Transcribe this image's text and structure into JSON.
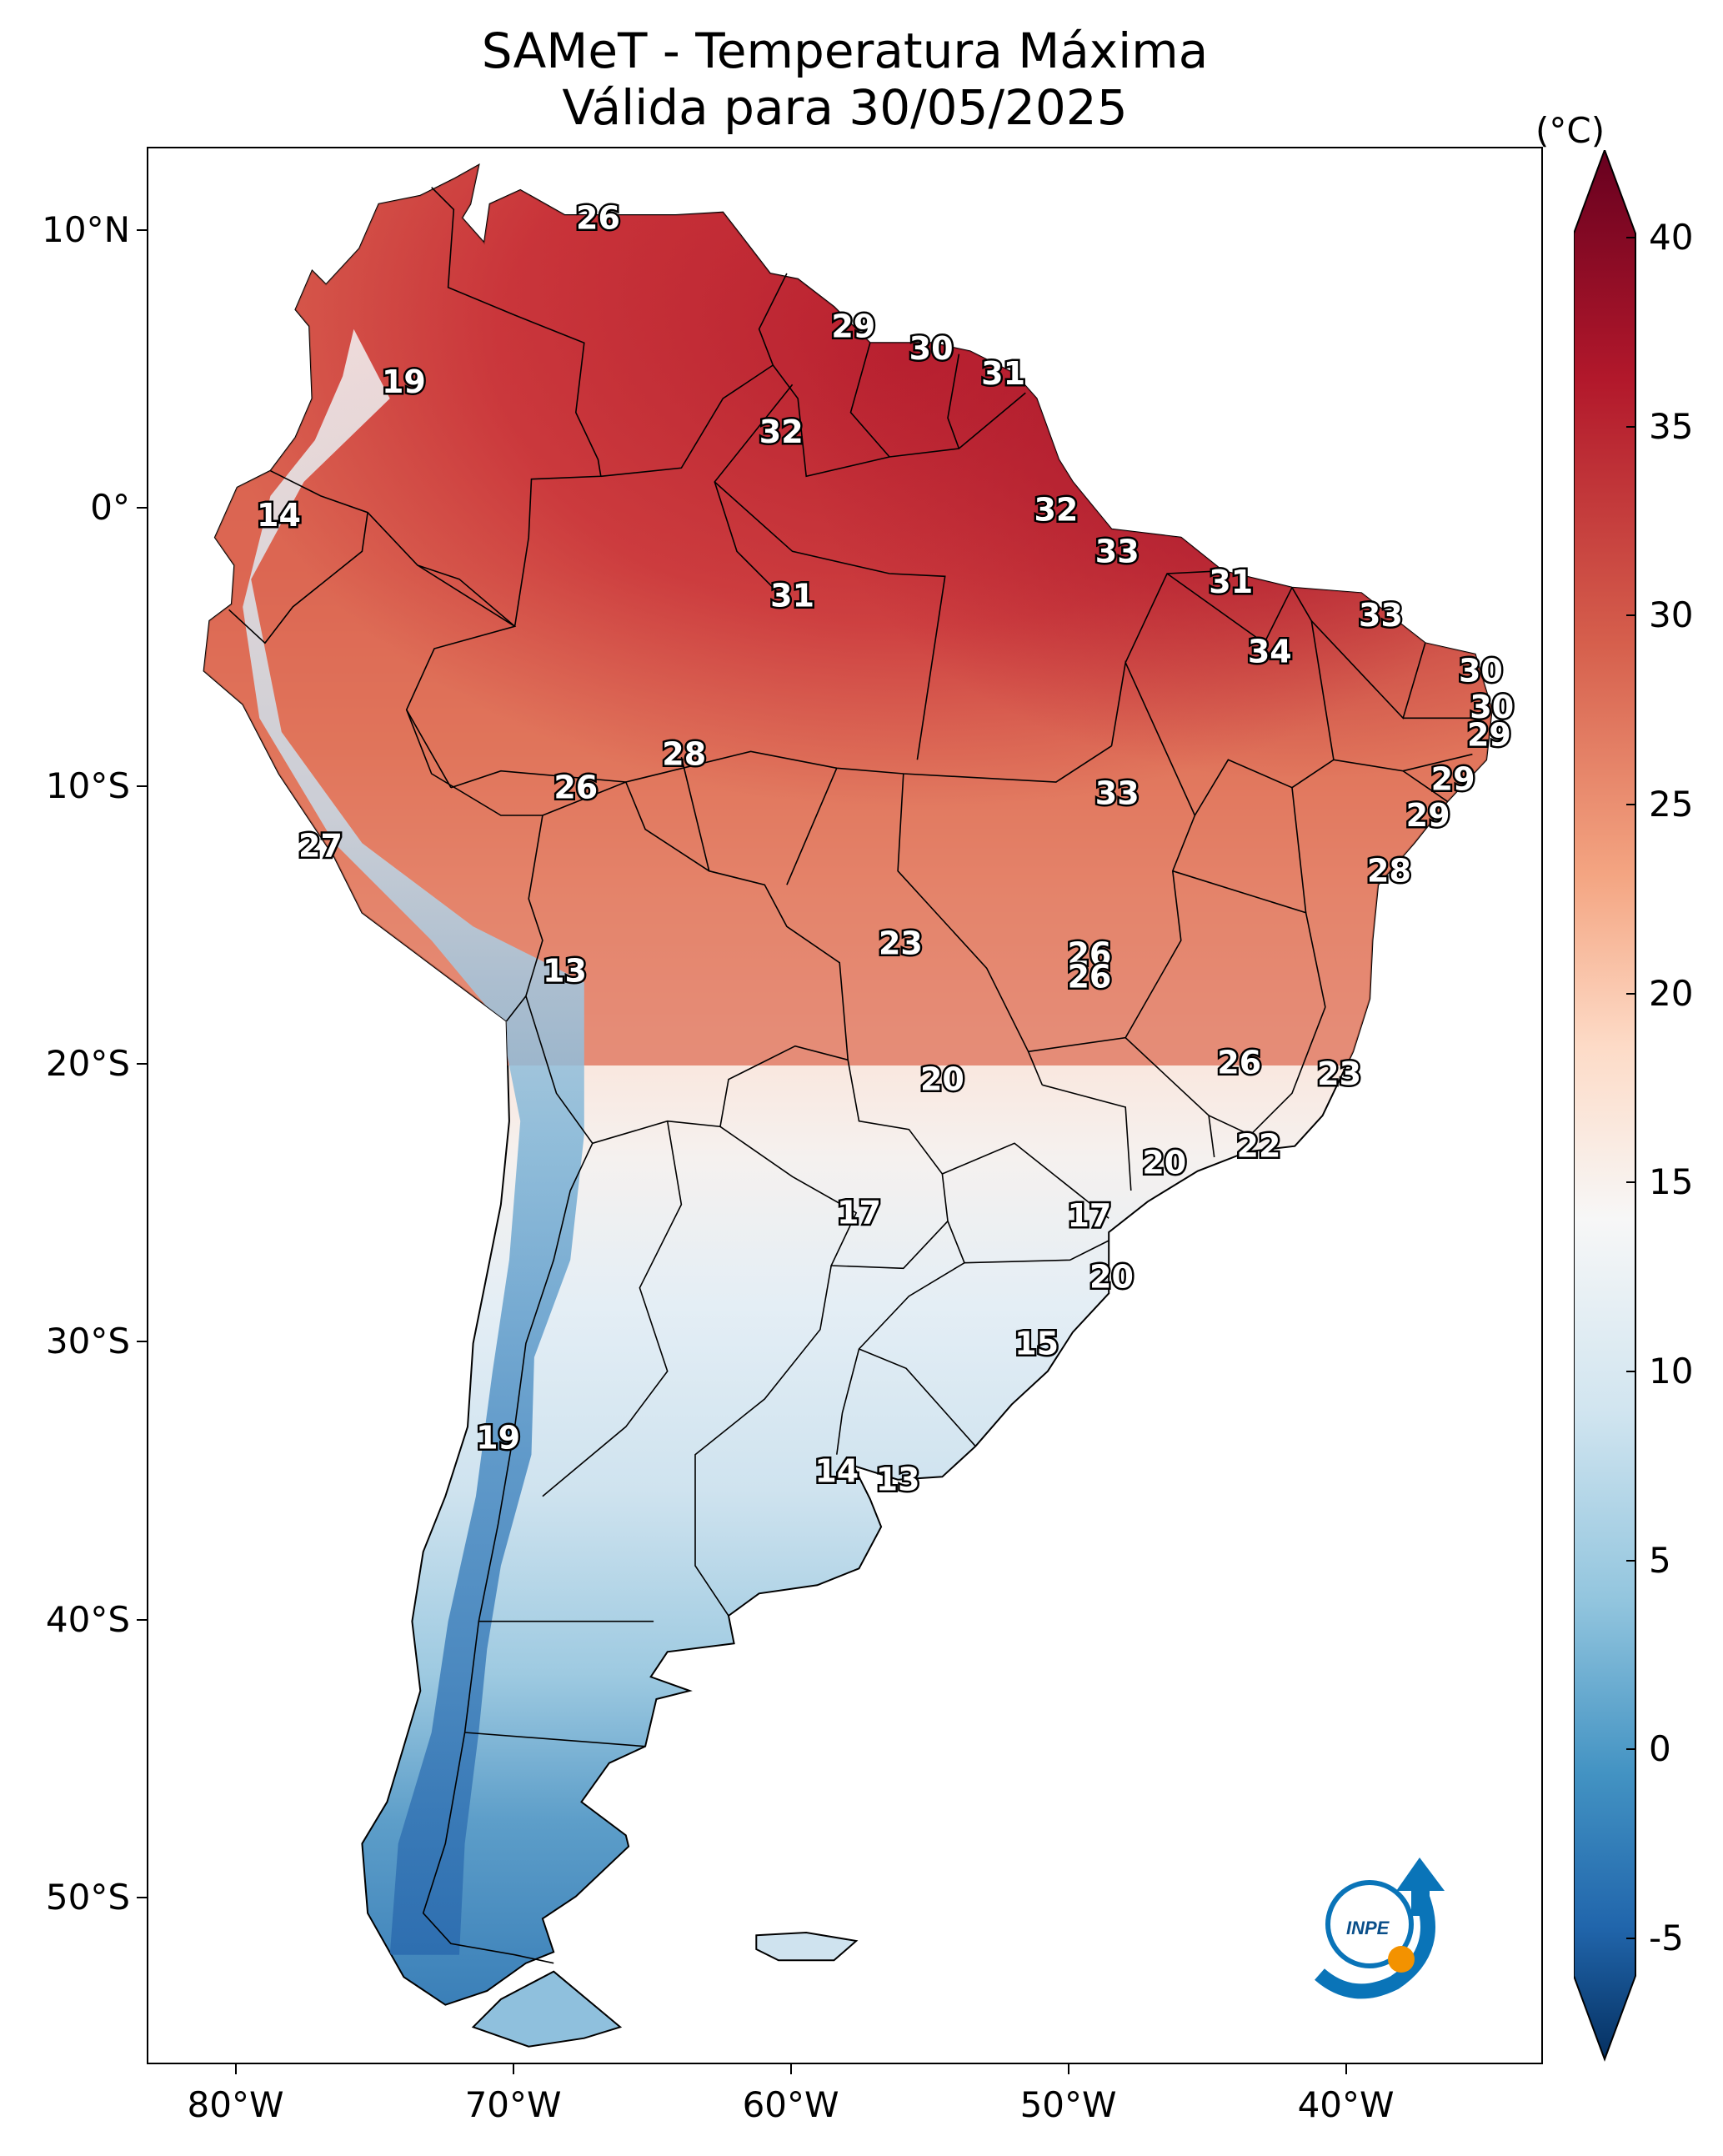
{
  "title": {
    "line1": "SAMeT - Temperatura Máxima",
    "line2": "Válida para 30/05/2025"
  },
  "axes": {
    "lat_labels": [
      "10°N",
      "0°",
      "10°S",
      "20°S",
      "30°S",
      "40°S",
      "50°S"
    ],
    "lon_labels": [
      "80°W",
      "70°W",
      "60°W",
      "50°W",
      "40°W"
    ],
    "lat_range": [
      -56,
      13
    ],
    "lon_range": [
      -83,
      -33
    ]
  },
  "colorbar": {
    "unit": "(°C)",
    "ticks": [
      "40",
      "35",
      "30",
      "25",
      "20",
      "15",
      "10",
      "5",
      "0",
      "-5"
    ],
    "range": [
      -7,
      42
    ],
    "colors_high_to_low": [
      "#67001f",
      "#b2182b",
      "#d6604d",
      "#f4a582",
      "#fddbc7",
      "#f7f7f7",
      "#d1e5f0",
      "#92c5de",
      "#4393c3",
      "#2166ac",
      "#053061"
    ]
  },
  "logo": {
    "text": "INPE",
    "color": "#0a74b8",
    "dot_color": "#f39200"
  },
  "station_labels": [
    {
      "value": "26",
      "lon": -67.0,
      "lat": 10.5
    },
    {
      "value": "29",
      "lon": -57.8,
      "lat": 6.6
    },
    {
      "value": "30",
      "lon": -55.0,
      "lat": 5.8
    },
    {
      "value": "31",
      "lon": -52.4,
      "lat": 4.9
    },
    {
      "value": "19",
      "lon": -74.0,
      "lat": 4.6
    },
    {
      "value": "32",
      "lon": -60.4,
      "lat": 2.8
    },
    {
      "value": "32",
      "lon": -50.5,
      "lat": 0.0
    },
    {
      "value": "14",
      "lon": -78.5,
      "lat": -0.2
    },
    {
      "value": "33",
      "lon": -48.3,
      "lat": -1.5
    },
    {
      "value": "31",
      "lon": -44.2,
      "lat": -2.6
    },
    {
      "value": "31",
      "lon": -60.0,
      "lat": -3.1
    },
    {
      "value": "33",
      "lon": -38.8,
      "lat": -3.8
    },
    {
      "value": "34",
      "lon": -42.8,
      "lat": -5.1
    },
    {
      "value": "30",
      "lon": -35.2,
      "lat": -5.8
    },
    {
      "value": "30",
      "lon": -34.8,
      "lat": -7.1
    },
    {
      "value": "29",
      "lon": -34.9,
      "lat": -8.1
    },
    {
      "value": "28",
      "lon": -63.9,
      "lat": -8.8
    },
    {
      "value": "26",
      "lon": -67.8,
      "lat": -10.0
    },
    {
      "value": "33",
      "lon": -48.3,
      "lat": -10.2
    },
    {
      "value": "29",
      "lon": -36.2,
      "lat": -9.7
    },
    {
      "value": "29",
      "lon": -37.1,
      "lat": -11.0
    },
    {
      "value": "27",
      "lon": -77.0,
      "lat": -12.1
    },
    {
      "value": "28",
      "lon": -38.5,
      "lat": -13.0
    },
    {
      "value": "23",
      "lon": -56.1,
      "lat": -15.6
    },
    {
      "value": "26",
      "lon": -49.3,
      "lat": -16.0
    },
    {
      "value": "26",
      "lon": -49.3,
      "lat": -16.8
    },
    {
      "value": "13",
      "lon": -68.2,
      "lat": -16.6
    },
    {
      "value": "26",
      "lon": -43.9,
      "lat": -19.9
    },
    {
      "value": "23",
      "lon": -40.3,
      "lat": -20.3
    },
    {
      "value": "20",
      "lon": -54.6,
      "lat": -20.5
    },
    {
      "value": "22",
      "lon": -43.2,
      "lat": -22.9
    },
    {
      "value": "20",
      "lon": -46.6,
      "lat": -23.5
    },
    {
      "value": "17",
      "lon": -57.6,
      "lat": -25.3
    },
    {
      "value": "17",
      "lon": -49.3,
      "lat": -25.4
    },
    {
      "value": "20",
      "lon": -48.5,
      "lat": -27.6
    },
    {
      "value": "15",
      "lon": -51.2,
      "lat": -30.0
    },
    {
      "value": "19",
      "lon": -70.6,
      "lat": -33.4
    },
    {
      "value": "14",
      "lon": -58.4,
      "lat": -34.6
    },
    {
      "value": "13",
      "lon": -56.2,
      "lat": -34.9
    }
  ]
}
